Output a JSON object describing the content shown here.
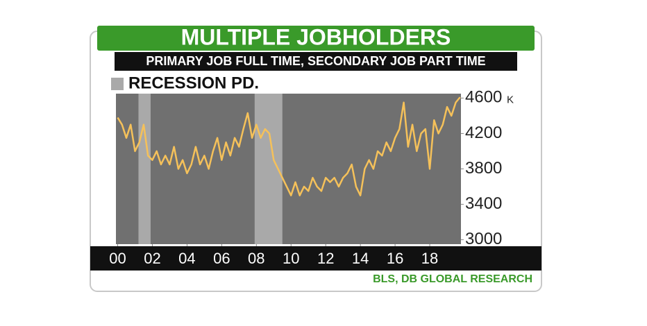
{
  "chart_data": {
    "type": "line",
    "title": "MULTIPLE JOBHOLDERS",
    "subtitle": "PRIMARY JOB FULL TIME, SECONDARY JOB PART TIME",
    "legend_label": "RECESSION PD.",
    "source": "BLS, DB GLOBAL RESEARCH",
    "y_unit": "K",
    "recessions": [
      [
        2001.2,
        2001.9
      ],
      [
        2007.9,
        2009.5
      ]
    ],
    "recession_color": "#a9a9a9",
    "plot_color": "#707070",
    "xlim": [
      1999.9,
      2019.8
    ],
    "ylim": [
      2950,
      4650
    ],
    "xticks": [
      {
        "value": 2000,
        "label": "00"
      },
      {
        "value": 2002,
        "label": "02"
      },
      {
        "value": 2004,
        "label": "04"
      },
      {
        "value": 2006,
        "label": "06"
      },
      {
        "value": 2008,
        "label": "08"
      },
      {
        "value": 2010,
        "label": "10"
      },
      {
        "value": 2012,
        "label": "12"
      },
      {
        "value": 2014,
        "label": "14"
      },
      {
        "value": 2016,
        "label": "16"
      },
      {
        "value": 2018,
        "label": "18"
      }
    ],
    "yticks": [
      3000,
      3400,
      3800,
      4200,
      4600
    ],
    "x": [
      2000,
      2000.25,
      2000.5,
      2000.75,
      2001,
      2001.25,
      2001.5,
      2001.75,
      2002,
      2002.25,
      2002.5,
      2002.75,
      2003,
      2003.25,
      2003.5,
      2003.75,
      2004,
      2004.25,
      2004.5,
      2004.75,
      2005,
      2005.25,
      2005.5,
      2005.75,
      2006,
      2006.25,
      2006.5,
      2006.75,
      2007,
      2007.25,
      2007.5,
      2007.75,
      2008,
      2008.25,
      2008.5,
      2008.75,
      2009,
      2009.25,
      2009.5,
      2009.75,
      2010,
      2010.25,
      2010.5,
      2010.75,
      2011,
      2011.25,
      2011.5,
      2011.75,
      2012,
      2012.25,
      2012.5,
      2012.75,
      2013,
      2013.25,
      2013.5,
      2013.75,
      2014,
      2014.25,
      2014.5,
      2014.75,
      2015,
      2015.25,
      2015.5,
      2015.75,
      2016,
      2016.25,
      2016.5,
      2016.75,
      2017,
      2017.25,
      2017.5,
      2017.75,
      2018,
      2018.25,
      2018.5,
      2018.75,
      2019,
      2019.25,
      2019.5,
      2019.75
    ],
    "series": [
      {
        "color": "#f5c15a",
        "values": [
          4380,
          4300,
          4150,
          4300,
          4000,
          4100,
          4300,
          3950,
          3900,
          4000,
          3850,
          3950,
          3850,
          4050,
          3800,
          3900,
          3750,
          3850,
          4050,
          3850,
          3950,
          3800,
          4000,
          4150,
          3900,
          4100,
          3950,
          4150,
          4050,
          4250,
          4430,
          4150,
          4300,
          4150,
          4250,
          4200,
          3900,
          3800,
          3700,
          3600,
          3500,
          3650,
          3500,
          3600,
          3550,
          3700,
          3600,
          3550,
          3700,
          3650,
          3700,
          3600,
          3700,
          3750,
          3850,
          3600,
          3500,
          3800,
          3900,
          3800,
          4000,
          3950,
          4100,
          4000,
          4150,
          4250,
          4550,
          4050,
          4300,
          4000,
          4200,
          4250,
          3800,
          4350,
          4200,
          4300,
          4500,
          4400,
          4550,
          4610
        ]
      }
    ]
  }
}
